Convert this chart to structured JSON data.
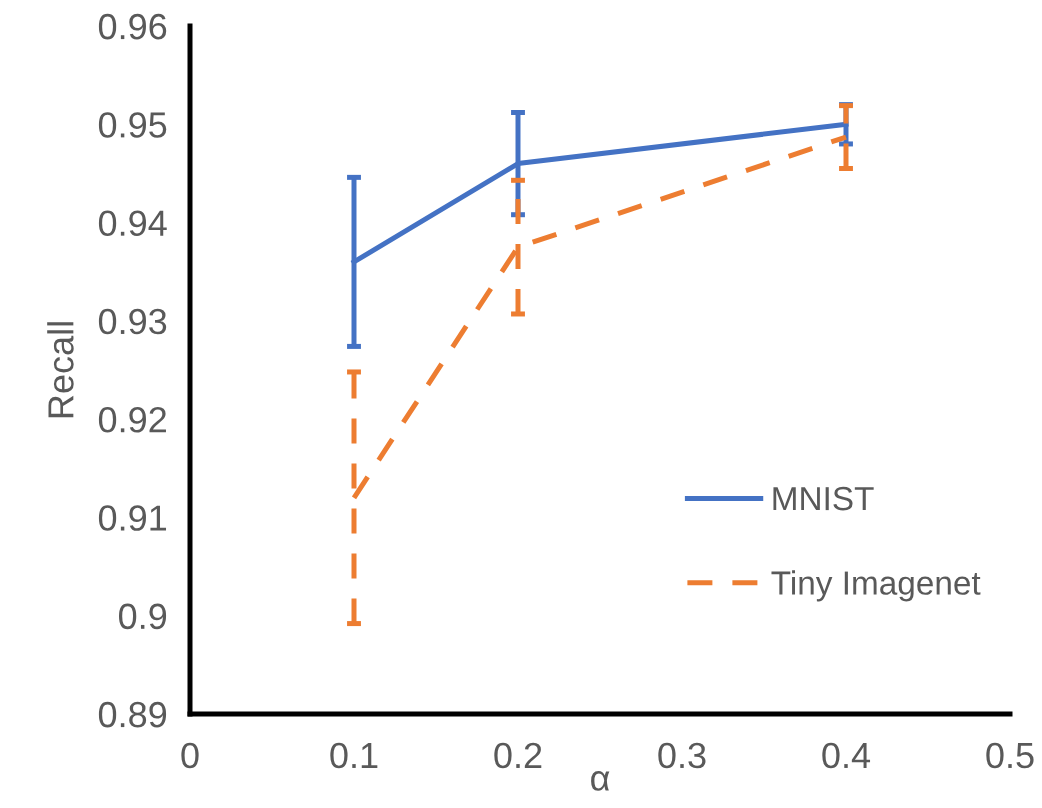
{
  "chart_data": {
    "type": "line",
    "xlabel": "α",
    "ylabel": "Recall",
    "xlim": [
      0,
      0.5
    ],
    "xticks": [
      0,
      0.1,
      0.2,
      0.3,
      0.4,
      0.5
    ],
    "ylim": [
      0.89,
      0.96
    ],
    "yticks": [
      0.89,
      0.9,
      0.91,
      0.92,
      0.93,
      0.94,
      0.95,
      0.96
    ],
    "grid": false,
    "legend": "bottom right",
    "marker": "none",
    "x": [
      0.1,
      0.2,
      0.4
    ],
    "series": [
      {
        "name": "MNIST",
        "color": "#4472c4",
        "line_style": "solid",
        "values": [
          0.936,
          0.946,
          0.95
        ],
        "errors": [
          0.0086,
          0.0052,
          0.002
        ]
      },
      {
        "name": "Tiny Imagenet",
        "color": "#ed7d31",
        "line_style": "dashed",
        "values": [
          0.912,
          0.9375,
          0.9487
        ],
        "errors": [
          0.0128,
          0.0068,
          0.0032
        ]
      }
    ]
  }
}
